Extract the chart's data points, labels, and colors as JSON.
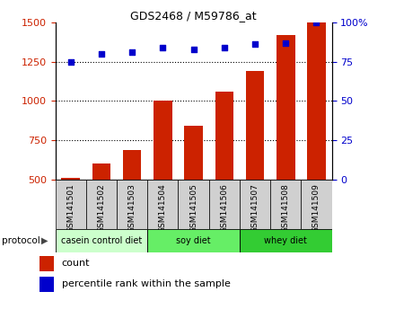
{
  "title": "GDS2468 / M59786_at",
  "samples": [
    "GSM141501",
    "GSM141502",
    "GSM141503",
    "GSM141504",
    "GSM141505",
    "GSM141506",
    "GSM141507",
    "GSM141508",
    "GSM141509"
  ],
  "counts": [
    510,
    600,
    690,
    1000,
    840,
    1060,
    1190,
    1420,
    1500
  ],
  "percentile_ranks": [
    75,
    80,
    81,
    84,
    83,
    84,
    86,
    87,
    100
  ],
  "groups": [
    {
      "label": "casein control diet",
      "start": 0,
      "end": 3,
      "color": "#ccffcc"
    },
    {
      "label": "soy diet",
      "start": 3,
      "end": 6,
      "color": "#66ee66"
    },
    {
      "label": "whey diet",
      "start": 6,
      "end": 9,
      "color": "#33cc33"
    }
  ],
  "bar_color": "#cc2200",
  "dot_color": "#0000cc",
  "left_ylim": [
    500,
    1500
  ],
  "left_yticks": [
    500,
    750,
    1000,
    1250,
    1500
  ],
  "right_ylim": [
    0,
    100
  ],
  "right_yticks": [
    0,
    25,
    50,
    75,
    100
  ],
  "right_yticklabels": [
    "0",
    "25",
    "50",
    "75",
    "100%"
  ],
  "tick_label_color_left": "#cc2200",
  "tick_label_color_right": "#0000cc",
  "legend_count_label": "count",
  "legend_pct_label": "percentile rank within the sample",
  "protocol_label": "protocol"
}
